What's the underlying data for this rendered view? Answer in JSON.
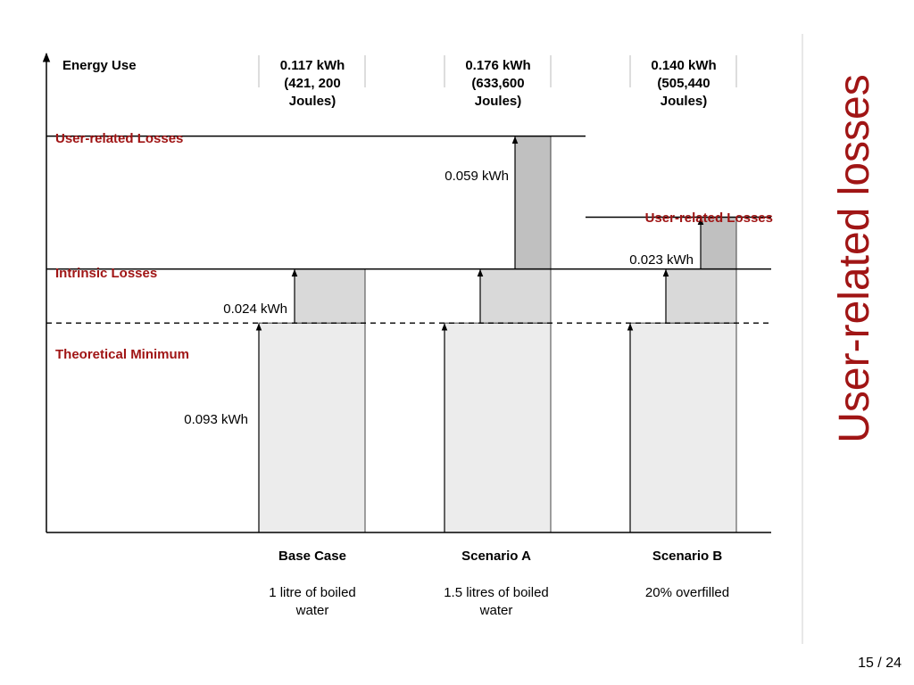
{
  "slide": {
    "title": "User-related losses",
    "page_number": "15 / 24",
    "title_color": "#a01515"
  },
  "chart_data": {
    "type": "bar",
    "stacked": true,
    "categories": [
      "Base Case",
      "Scenario A",
      "Scenario B"
    ],
    "category_descriptions": [
      "1 litre of boiled water",
      "1.5 litres of boiled water",
      "20% overfilled"
    ],
    "ylabel": "Energy Use",
    "unit": "kWh",
    "ylim": [
      0,
      0.176
    ],
    "series": [
      {
        "key": "min",
        "values": [
          0.093,
          0.093,
          0.093
        ],
        "color": "#ececec"
      },
      {
        "key": "intrinsic",
        "values": [
          0.024,
          0.024,
          0.024
        ],
        "color": "#d9d9d9"
      },
      {
        "key": "user",
        "values": [
          0,
          0.059,
          0.023
        ],
        "color": "#c0c0c0"
      }
    ],
    "totals": [
      {
        "kwh": "0.117 kWh",
        "joules": "(421, 200",
        "joules_unit": "Joules)"
      },
      {
        "kwh": "0.176 kWh",
        "joules": "(633,600",
        "joules_unit": "Joules)"
      },
      {
        "kwh": "0.140 kWh",
        "joules": "(505,440",
        "joules_unit": "Joules)"
      }
    ],
    "reference_lines": {
      "theoretical_minimum": 0.093,
      "intrinsic_losses": 0.117,
      "user_losses_scenario_a": 0.176,
      "user_losses_scenario_b": 0.14
    },
    "level_labels": {
      "user_related_losses": "User-related Losses",
      "intrinsic_losses": "Intrinsic Losses",
      "theoretical_minimum": "Theoretical Minimum",
      "user_related_losses_b": "User-related Losses"
    },
    "value_labels": {
      "theoretical_minimum": "0.093 kWh",
      "intrinsic": "0.024 kWh",
      "user_a": "0.059 kWh",
      "user_b": "0.023 kWh"
    }
  }
}
